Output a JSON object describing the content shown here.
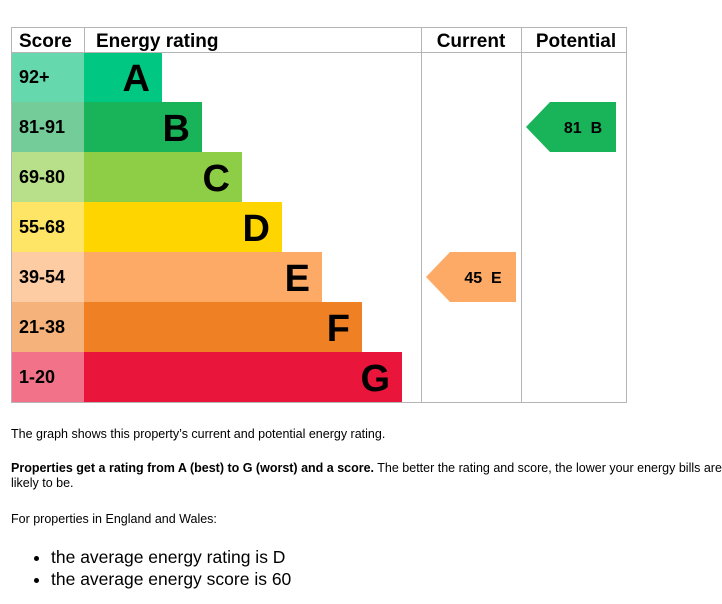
{
  "chart_data": {
    "type": "table",
    "columns": [
      "Score",
      "Energy rating",
      "Current",
      "Potential"
    ],
    "bands": [
      {
        "letter": "A",
        "score_range": "92+",
        "color": "#00c781",
        "score_color": "#66d8ad"
      },
      {
        "letter": "B",
        "score_range": "81-91",
        "color": "#19b459",
        "score_color": "#74cc99"
      },
      {
        "letter": "C",
        "score_range": "69-80",
        "color": "#8dce46",
        "score_color": "#b8e08a"
      },
      {
        "letter": "D",
        "score_range": "55-68",
        "color": "#ffd500",
        "score_color": "#ffe566"
      },
      {
        "letter": "E",
        "score_range": "39-54",
        "color": "#fcaa65",
        "score_color": "#fdcca3"
      },
      {
        "letter": "F",
        "score_range": "21-38",
        "color": "#ef8023",
        "score_color": "#f5b37b"
      },
      {
        "letter": "G",
        "score_range": "1-20",
        "color": "#e9153b",
        "score_color": "#f27389"
      }
    ],
    "current": {
      "score": 45,
      "band": "E",
      "label": "45  E"
    },
    "potential": {
      "score": 81,
      "band": "B",
      "label": "81  B"
    }
  },
  "text": {
    "p1": "The graph shows this property’s current and potential energy rating.",
    "p2_bold": "Properties get a rating from A (best) to G (worst) and a score.",
    "p2_rest": " The better the rating and score, the lower your energy bills are likely to be.",
    "p3": "For properties in England and Wales:",
    "bullets": [
      "the average energy rating is D",
      "the average energy score is 60"
    ]
  }
}
